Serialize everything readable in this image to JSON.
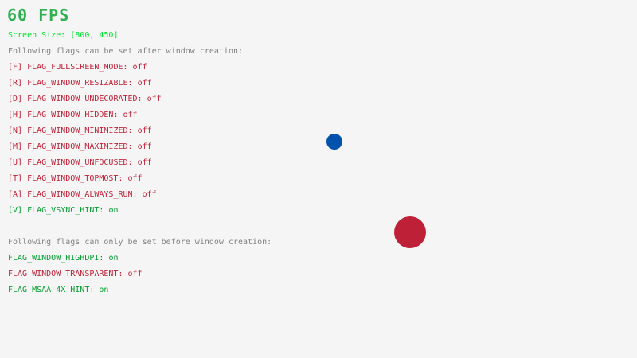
{
  "fps": "60 FPS",
  "screen_size": "Screen Size: [800, 450]",
  "after_heading": "Following flags can be set after window creation:",
  "after_flags": [
    {
      "label": "[F] FLAG_FULLSCREEN_MODE: ",
      "value": "off",
      "enabled": false
    },
    {
      "label": "[R] FLAG_WINDOW_RESIZABLE: ",
      "value": "off",
      "enabled": false
    },
    {
      "label": "[D] FLAG_WINDOW_UNDECORATED: ",
      "value": "off",
      "enabled": false
    },
    {
      "label": "[H] FLAG_WINDOW_HIDDEN: ",
      "value": "off",
      "enabled": false
    },
    {
      "label": "[N] FLAG_WINDOW_MINIMIZED: ",
      "value": "off",
      "enabled": false
    },
    {
      "label": "[M] FLAG_WINDOW_MAXIMIZED: ",
      "value": "off",
      "enabled": false
    },
    {
      "label": "[U] FLAG_WINDOW_UNFOCUSED: ",
      "value": "off",
      "enabled": false
    },
    {
      "label": "[T] FLAG_WINDOW_TOPMOST: ",
      "value": "off",
      "enabled": false
    },
    {
      "label": "[A] FLAG_WINDOW_ALWAYS_RUN: ",
      "value": "off",
      "enabled": false
    },
    {
      "label": "[V] FLAG_VSYNC_HINT: ",
      "value": "on",
      "enabled": true
    }
  ],
  "before_heading": "Following flags can only be set before window creation:",
  "before_flags": [
    {
      "label": "FLAG_WINDOW_HIGHDPI: ",
      "value": "on",
      "enabled": true
    },
    {
      "label": "FLAG_WINDOW_TRANSPARENT: ",
      "value": "off",
      "enabled": false
    },
    {
      "label": "FLAG_MSAA_4X_HINT: ",
      "value": "on",
      "enabled": true
    }
  ],
  "colors": {
    "on": "#009e2f",
    "off": "#be2137",
    "heading": "#828282",
    "screen_size": "#00e430",
    "blue_ball": "#0052ac",
    "red_ball": "#be2137",
    "background": "#f5f5f5"
  }
}
